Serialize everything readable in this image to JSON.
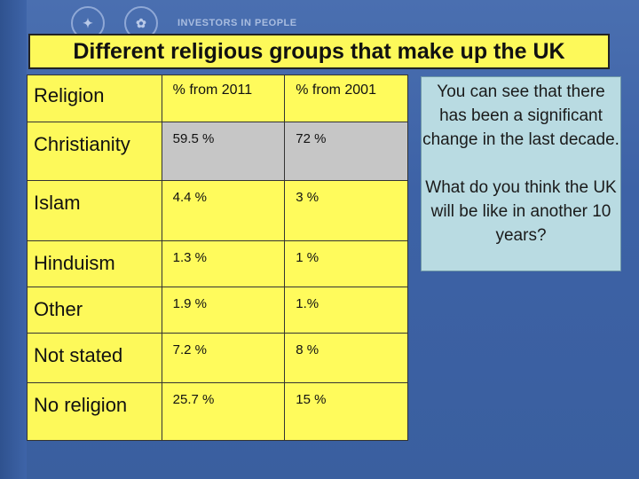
{
  "title": "Different religious groups that make up the UK",
  "logos": {
    "investors": "INVESTORS IN PEOPLE"
  },
  "table": {
    "header": [
      "Religion",
      "% from 2011",
      "% from 2001"
    ],
    "rows": [
      {
        "religion": "Christianity",
        "y2011": "59.5 %",
        "y2001": "72 %"
      },
      {
        "religion": "Islam",
        "y2011": "4.4 %",
        "y2001": "3 %"
      },
      {
        "religion": "Hinduism",
        "y2011": "1.3 %",
        "y2001": "1 %"
      },
      {
        "religion": "Other",
        "y2011": "1.9 %",
        "y2001": "1.%"
      },
      {
        "religion": "Not stated",
        "y2011": "7.2 %",
        "y2001": "8 %"
      },
      {
        "religion": "No religion",
        "y2011": "25.7 %",
        "y2001": "15 %"
      }
    ]
  },
  "side_note": {
    "para1": "You can see that there has been a significant change in the last decade.",
    "para2": "What do you think the UK will be like in another 10 years?"
  },
  "colors": {
    "title_bg": "#fdf95a",
    "table_bg": "#fdf95a",
    "grey_cell": "#c6c6c6",
    "note_bg": "#b9dbe2",
    "page_bg": "#4a6fb0"
  }
}
